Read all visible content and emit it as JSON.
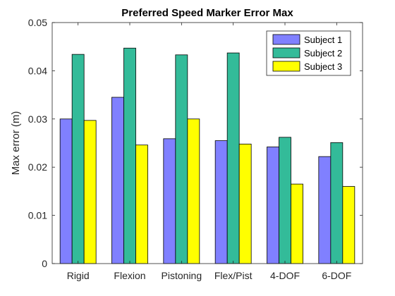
{
  "chart_data": {
    "type": "bar",
    "title": "Preferred Speed Marker Error Max",
    "xlabel": "",
    "ylabel": "Max error (m)",
    "ylim": [
      0,
      0.05
    ],
    "yticks": [
      "0",
      "0.01",
      "0.02",
      "0.03",
      "0.04",
      "0.05"
    ],
    "categories": [
      "Rigid",
      "Flexion",
      "Pistoning",
      "Flex/Pist",
      "4-DOF",
      "6-DOF"
    ],
    "series": [
      {
        "name": "Subject 1",
        "color": "#8080ff",
        "values": [
          0.03,
          0.0345,
          0.0259,
          0.0255,
          0.0242,
          0.0222
        ]
      },
      {
        "name": "Subject 2",
        "color": "#33bb99",
        "values": [
          0.0434,
          0.0447,
          0.0433,
          0.0437,
          0.0262,
          0.0251
        ]
      },
      {
        "name": "Subject 3",
        "color": "#ffff00",
        "values": [
          0.0297,
          0.0246,
          0.03,
          0.0248,
          0.0165,
          0.016
        ]
      }
    ],
    "legend_position": "top-right",
    "grid": false
  }
}
